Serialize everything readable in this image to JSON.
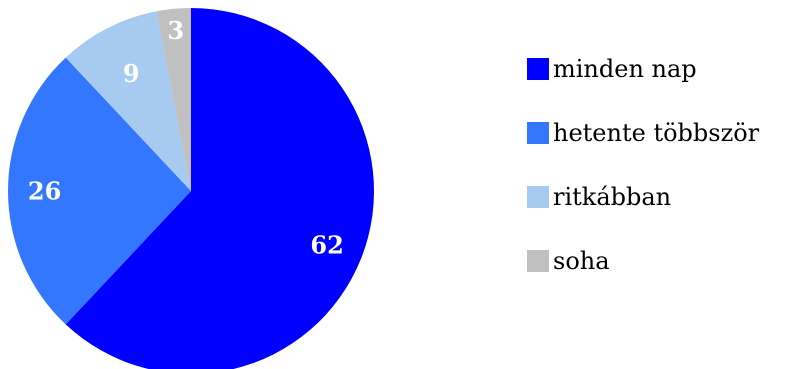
{
  "chart_data": {
    "type": "pie",
    "title": "",
    "categories": [
      "minden nap",
      "hetente többször",
      "ritkábban",
      "soha"
    ],
    "values": [
      62,
      26,
      9,
      3
    ],
    "colors": [
      "#0000ff",
      "#3377ff",
      "#a6caf0",
      "#c0c0c0"
    ],
    "data_labels": [
      "62",
      "26",
      "9",
      "3"
    ],
    "legend_position": "right",
    "start_angle_deg": 0,
    "direction": "clockwise"
  }
}
